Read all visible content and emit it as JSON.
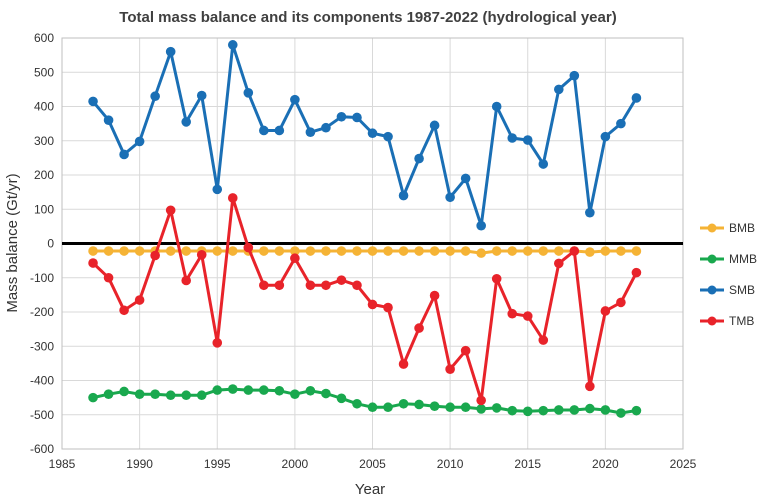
{
  "chart_data": {
    "type": "line",
    "title": "Total mass balance and its components 1987-2022 (hydrological year)",
    "xlabel": "Year",
    "ylabel": "Mass balance (Gt/yr)",
    "xlim": [
      1985,
      2025
    ],
    "ylim": [
      -600,
      600
    ],
    "x_ticks": [
      1985,
      1990,
      1995,
      2000,
      2005,
      2010,
      2015,
      2020,
      2025
    ],
    "y_ticks": [
      -600,
      -500,
      -400,
      -300,
      -200,
      -100,
      0,
      100,
      200,
      300,
      400,
      500,
      600
    ],
    "grid": "both",
    "zero_line": true,
    "legend_position": "right",
    "x": [
      1987,
      1988,
      1989,
      1990,
      1991,
      1992,
      1993,
      1994,
      1995,
      1996,
      1997,
      1998,
      1999,
      2000,
      2001,
      2002,
      2003,
      2004,
      2005,
      2006,
      2007,
      2008,
      2009,
      2010,
      2011,
      2012,
      2013,
      2014,
      2015,
      2016,
      2017,
      2018,
      2019,
      2020,
      2021,
      2022
    ],
    "series": [
      {
        "name": "BMB",
        "color": "#f5b335",
        "values": [
          -22,
          -22,
          -22,
          -22,
          -22,
          -22,
          -22,
          -22,
          -22,
          -22,
          -22,
          -22,
          -22,
          -22,
          -22,
          -22,
          -22,
          -22,
          -22,
          -22,
          -22,
          -22,
          -22,
          -22,
          -22,
          -28,
          -22,
          -22,
          -22,
          -22,
          -22,
          -22,
          -25,
          -22,
          -22,
          -22
        ]
      },
      {
        "name": "MMB",
        "color": "#19a84e",
        "values": [
          -450,
          -440,
          -432,
          -440,
          -440,
          -443,
          -443,
          -443,
          -428,
          -425,
          -428,
          -428,
          -430,
          -440,
          -430,
          -438,
          -452,
          -468,
          -478,
          -478,
          -468,
          -470,
          -475,
          -478,
          -478,
          -483,
          -480,
          -488,
          -490,
          -488,
          -486,
          -486,
          -482,
          -486,
          -495,
          -488
        ]
      },
      {
        "name": "SMB",
        "color": "#1a6fb5",
        "values": [
          415,
          360,
          260,
          298,
          430,
          560,
          355,
          432,
          158,
          580,
          440,
          330,
          330,
          420,
          325,
          338,
          370,
          368,
          322,
          312,
          140,
          248,
          345,
          135,
          190,
          52,
          400,
          308,
          302,
          232,
          450,
          490,
          90,
          312,
          350,
          425
        ]
      },
      {
        "name": "TMB",
        "color": "#e8232a",
        "values": [
          -57,
          -100,
          -195,
          -165,
          -35,
          97,
          -108,
          -33,
          -290,
          133,
          -12,
          -122,
          -122,
          -43,
          -122,
          -122,
          -107,
          -122,
          -178,
          -187,
          -352,
          -247,
          -152,
          -367,
          -313,
          -458,
          -103,
          -205,
          -212,
          -282,
          -58,
          -22,
          -417,
          -197,
          -172,
          -85
        ]
      }
    ]
  }
}
